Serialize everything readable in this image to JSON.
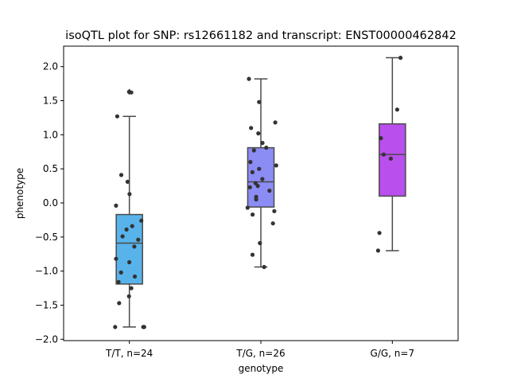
{
  "chart_data": {
    "type": "box",
    "title": "isoQTL plot for SNP: rs12661182 and transcript: ENST00000462842",
    "xlabel": "genotype",
    "ylabel": "phenotype",
    "ylim": [
      -2.02,
      2.3
    ],
    "yticks": [
      "2.0",
      "1.5",
      "1.0",
      "0.5",
      "0.0",
      "−0.5",
      "−1.0",
      "−1.5",
      "−2.0"
    ],
    "ytick_values": [
      2.0,
      1.5,
      1.0,
      0.5,
      0.0,
      -0.5,
      -1.0,
      -1.5,
      -2.0
    ],
    "categories": [
      "T/T, n=24",
      "T/G, n=26",
      "G/G, n=7"
    ],
    "colors": [
      "#58b3eb",
      "#8c8cf5",
      "#b94fec"
    ],
    "boxes": [
      {
        "q1": -1.19,
        "median": -0.59,
        "q3": -0.17,
        "whisker_low": -1.82,
        "whisker_high": 1.27,
        "outliers": [
          1.63
        ]
      },
      {
        "q1": -0.06,
        "median": 0.31,
        "q3": 0.81,
        "whisker_low": -0.94,
        "whisker_high": 1.82,
        "outliers": []
      },
      {
        "q1": 0.1,
        "median": 0.71,
        "q3": 1.16,
        "whisker_low": -0.7,
        "whisker_high": 2.13,
        "outliers": []
      }
    ],
    "points": [
      [
        1.63,
        1.62,
        1.27,
        0.41,
        0.31,
        0.13,
        -0.04,
        -0.26,
        -0.34,
        -0.39,
        -0.49,
        -0.54,
        -0.64,
        -0.82,
        -0.87,
        -1.02,
        -1.08,
        -1.16,
        -1.25,
        -1.37,
        -1.47,
        -1.82,
        -1.82,
        -1.82
      ],
      [
        1.82,
        1.48,
        1.18,
        1.1,
        1.02,
        0.88,
        0.81,
        0.77,
        0.6,
        0.55,
        0.5,
        0.45,
        0.35,
        0.29,
        0.23,
        0.18,
        0.09,
        0.05,
        -0.07,
        -0.12,
        -0.17,
        -0.3,
        -0.59,
        -0.76,
        -0.94,
        0.25
      ],
      [
        2.13,
        1.37,
        0.95,
        0.71,
        0.65,
        -0.44,
        -0.7
      ]
    ]
  }
}
